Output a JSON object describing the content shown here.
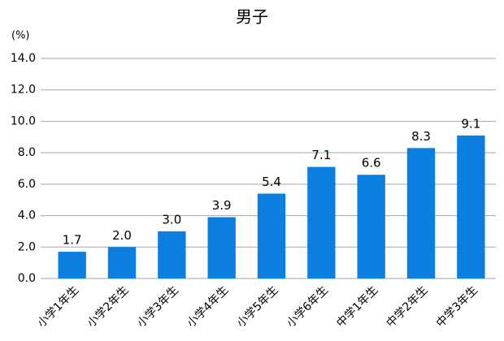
{
  "chart_data": {
    "type": "bar",
    "title": "男子",
    "ylabel": "(%)",
    "categories": [
      "小学1年生",
      "小学2年生",
      "小学3年生",
      "小学4年生",
      "小学5年生",
      "小学6年生",
      "中学1年生",
      "中学2年生",
      "中学3年生"
    ],
    "values": [
      1.7,
      2.0,
      3.0,
      3.9,
      5.4,
      7.1,
      6.6,
      8.3,
      9.1
    ],
    "value_labels": [
      "1.7",
      "2.0",
      "3.0",
      "3.9",
      "5.4",
      "7.1",
      "6.6",
      "8.3",
      "9.1"
    ],
    "color": "#0b7fe0",
    "ylim": [
      0,
      14
    ],
    "yticks": [
      {
        "value": 0,
        "label": "0.0"
      },
      {
        "value": 2,
        "label": "2.0"
      },
      {
        "value": 4,
        "label": "4.0"
      },
      {
        "value": 6,
        "label": "6.0"
      },
      {
        "value": 8,
        "label": "8.0"
      },
      {
        "value": 10,
        "label": "10.0"
      },
      {
        "value": 12,
        "label": "12.0"
      },
      {
        "value": 14,
        "label": "14.0"
      }
    ],
    "grid": true
  }
}
